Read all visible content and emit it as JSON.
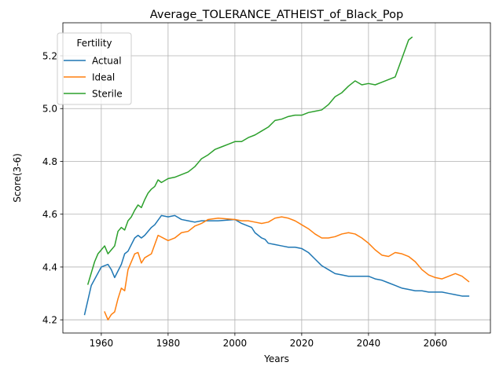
{
  "chart_data": {
    "type": "line",
    "title": "Average_TOLERANCE_ATHEIST_of_Black_Pop",
    "xlabel": "Years",
    "ylabel": "Score(3-6)",
    "xlim": [
      1948.5,
      2076.5
    ],
    "ylim": [
      4.15,
      5.325
    ],
    "xticks": [
      1960,
      1980,
      2000,
      2020,
      2040,
      2060
    ],
    "yticks": [
      4.2,
      4.4,
      4.6,
      4.8,
      5.0,
      5.2
    ],
    "xtick_labels": [
      "1960",
      "1980",
      "2000",
      "2020",
      "2040",
      "2060"
    ],
    "ytick_labels": [
      "4.2",
      "4.4",
      "4.6",
      "4.8",
      "5.0",
      "5.2"
    ],
    "grid": true,
    "legend": {
      "title": "Fertility",
      "placement": "top-left"
    },
    "series": [
      {
        "name": "Actual",
        "color": "#1f77b4",
        "x": [
          1955,
          1957,
          1960,
          1962,
          1963,
          1964,
          1966,
          1967,
          1968,
          1970,
          1971,
          1972,
          1973,
          1975,
          1976,
          1978,
          1980,
          1982,
          1984,
          1986,
          1988,
          1990,
          1995,
          2000,
          2002,
          2004,
          2005,
          2006,
          2007,
          2008,
          2009,
          2010,
          2012,
          2014,
          2016,
          2018,
          2020,
          2022,
          2024,
          2026,
          2028,
          2030,
          2032,
          2034,
          2036,
          2038,
          2040,
          2042,
          2044,
          2046,
          2048,
          2050,
          2052,
          2054,
          2056,
          2058,
          2060,
          2062,
          2064,
          2066,
          2068,
          2070
        ],
        "y": [
          4.22,
          4.33,
          4.4,
          4.41,
          4.39,
          4.36,
          4.41,
          4.45,
          4.46,
          4.51,
          4.52,
          4.51,
          4.52,
          4.55,
          4.56,
          4.595,
          4.59,
          4.595,
          4.58,
          4.575,
          4.57,
          4.575,
          4.575,
          4.58,
          4.565,
          4.555,
          4.55,
          4.53,
          4.52,
          4.51,
          4.505,
          4.49,
          4.485,
          4.48,
          4.475,
          4.475,
          4.47,
          4.455,
          4.43,
          4.405,
          4.39,
          4.375,
          4.37,
          4.365,
          4.365,
          4.365,
          4.365,
          4.355,
          4.35,
          4.34,
          4.33,
          4.32,
          4.315,
          4.31,
          4.31,
          4.305,
          4.305,
          4.305,
          4.3,
          4.295,
          4.29,
          4.29
        ]
      },
      {
        "name": "Ideal",
        "color": "#ff7f0e",
        "x": [
          1961,
          1962,
          1963,
          1964,
          1965,
          1966,
          1967,
          1968,
          1970,
          1971,
          1972,
          1973,
          1975,
          1977,
          1980,
          1982,
          1984,
          1986,
          1988,
          1990,
          1992,
          1995,
          2000,
          2002,
          2004,
          2006,
          2008,
          2010,
          2012,
          2014,
          2016,
          2018,
          2020,
          2022,
          2024,
          2026,
          2028,
          2030,
          2032,
          2034,
          2036,
          2038,
          2040,
          2042,
          2044,
          2046,
          2048,
          2050,
          2052,
          2054,
          2056,
          2058,
          2060,
          2062,
          2064,
          2066,
          2068,
          2070
        ],
        "y": [
          4.23,
          4.2,
          4.22,
          4.23,
          4.28,
          4.32,
          4.31,
          4.39,
          4.45,
          4.455,
          4.415,
          4.435,
          4.45,
          4.52,
          4.5,
          4.51,
          4.53,
          4.535,
          4.555,
          4.565,
          4.58,
          4.585,
          4.58,
          4.575,
          4.575,
          4.57,
          4.565,
          4.57,
          4.585,
          4.59,
          4.585,
          4.575,
          4.56,
          4.545,
          4.525,
          4.51,
          4.51,
          4.515,
          4.525,
          4.53,
          4.525,
          4.51,
          4.49,
          4.465,
          4.445,
          4.44,
          4.455,
          4.45,
          4.44,
          4.42,
          4.39,
          4.37,
          4.36,
          4.355,
          4.365,
          4.375,
          4.365,
          4.345
        ]
      },
      {
        "name": "Sterile",
        "color": "#2ca02c",
        "x": [
          1956,
          1958,
          1959,
          1960,
          1961,
          1962,
          1963,
          1964,
          1965,
          1966,
          1967,
          1968,
          1969,
          1970,
          1971,
          1972,
          1973,
          1974,
          1975,
          1976,
          1977,
          1978,
          1980,
          1982,
          1984,
          1986,
          1988,
          1990,
          1992,
          1994,
          1996,
          1998,
          2000,
          2002,
          2004,
          2006,
          2008,
          2010,
          2012,
          2014,
          2016,
          2018,
          2020,
          2022,
          2024,
          2026,
          2028,
          2030,
          2032,
          2034,
          2036,
          2038,
          2040,
          2042,
          2044,
          2046,
          2048,
          2050,
          2052,
          2053
        ],
        "y": [
          4.335,
          4.42,
          4.45,
          4.465,
          4.48,
          4.45,
          4.465,
          4.48,
          4.535,
          4.55,
          4.54,
          4.575,
          4.59,
          4.615,
          4.635,
          4.625,
          4.655,
          4.68,
          4.695,
          4.705,
          4.73,
          4.72,
          4.735,
          4.74,
          4.75,
          4.76,
          4.78,
          4.81,
          4.825,
          4.845,
          4.855,
          4.865,
          4.875,
          4.875,
          4.89,
          4.9,
          4.915,
          4.93,
          4.955,
          4.96,
          4.97,
          4.975,
          4.975,
          4.985,
          4.99,
          4.995,
          5.015,
          5.045,
          5.06,
          5.085,
          5.105,
          5.09,
          5.095,
          5.09,
          5.1,
          5.11,
          5.12,
          5.19,
          5.26,
          5.27
        ]
      }
    ]
  }
}
